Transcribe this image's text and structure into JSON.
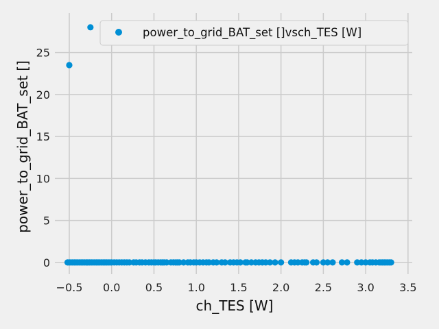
{
  "chart_data": {
    "type": "scatter",
    "title": "",
    "xlabel": "ch_TES [W]",
    "ylabel": "power_to_grid_BAT_set []",
    "xlim": [
      -0.67,
      3.55
    ],
    "ylim": [
      -1.4,
      29.7
    ],
    "xticks": [
      -0.5,
      0.0,
      0.5,
      1.0,
      1.5,
      2.0,
      2.5,
      3.0,
      3.5
    ],
    "xtick_labels": [
      "−0.5",
      "0.0",
      "0.5",
      "1.0",
      "1.5",
      "2.0",
      "2.5",
      "3.0",
      "3.5"
    ],
    "yticks": [
      0,
      5,
      10,
      15,
      20,
      25
    ],
    "ytick_labels": [
      "0",
      "5",
      "10",
      "15",
      "20",
      "25"
    ],
    "grid": true,
    "legend_position": "top-right",
    "series": [
      {
        "name": "power_to_grid_BAT_set []vsch_TES [W]",
        "color": "#008fd5",
        "points": [
          [
            -0.25,
            28.0
          ],
          [
            -0.5,
            23.5
          ],
          [
            -0.52,
            0
          ],
          [
            -0.5,
            0
          ],
          [
            -0.48,
            0
          ],
          [
            -0.46,
            0
          ],
          [
            -0.44,
            0
          ],
          [
            -0.42,
            0
          ],
          [
            -0.4,
            0
          ],
          [
            -0.38,
            0
          ],
          [
            -0.36,
            0
          ],
          [
            -0.34,
            0
          ],
          [
            -0.32,
            0
          ],
          [
            -0.3,
            0
          ],
          [
            -0.28,
            0
          ],
          [
            -0.26,
            0
          ],
          [
            -0.24,
            0
          ],
          [
            -0.22,
            0
          ],
          [
            -0.2,
            0
          ],
          [
            -0.18,
            0
          ],
          [
            -0.16,
            0
          ],
          [
            -0.14,
            0
          ],
          [
            -0.12,
            0
          ],
          [
            -0.1,
            0
          ],
          [
            -0.08,
            0
          ],
          [
            -0.06,
            0
          ],
          [
            -0.04,
            0
          ],
          [
            -0.02,
            0
          ],
          [
            0.0,
            0
          ],
          [
            0.03,
            0
          ],
          [
            0.06,
            0
          ],
          [
            0.09,
            0
          ],
          [
            0.12,
            0
          ],
          [
            0.15,
            0
          ],
          [
            0.18,
            0
          ],
          [
            0.21,
            0
          ],
          [
            0.26,
            0
          ],
          [
            0.29,
            0
          ],
          [
            0.33,
            0
          ],
          [
            0.36,
            0
          ],
          [
            0.4,
            0
          ],
          [
            0.44,
            0
          ],
          [
            0.47,
            0
          ],
          [
            0.5,
            0
          ],
          [
            0.52,
            0
          ],
          [
            0.55,
            0
          ],
          [
            0.58,
            0
          ],
          [
            0.6,
            0
          ],
          [
            0.62,
            0
          ],
          [
            0.65,
            0
          ],
          [
            0.7,
            0
          ],
          [
            0.73,
            0
          ],
          [
            0.76,
            0
          ],
          [
            0.78,
            0
          ],
          [
            0.8,
            0
          ],
          [
            0.85,
            0
          ],
          [
            0.9,
            0
          ],
          [
            0.93,
            0
          ],
          [
            0.97,
            0
          ],
          [
            1.0,
            0
          ],
          [
            1.04,
            0
          ],
          [
            1.08,
            0
          ],
          [
            1.12,
            0
          ],
          [
            1.15,
            0
          ],
          [
            1.2,
            0
          ],
          [
            1.24,
            0
          ],
          [
            1.3,
            0
          ],
          [
            1.34,
            0
          ],
          [
            1.4,
            0
          ],
          [
            1.44,
            0
          ],
          [
            1.48,
            0
          ],
          [
            1.52,
            0
          ],
          [
            1.58,
            0
          ],
          [
            1.6,
            0
          ],
          [
            1.65,
            0
          ],
          [
            1.7,
            0
          ],
          [
            1.74,
            0
          ],
          [
            1.78,
            0
          ],
          [
            1.82,
            0
          ],
          [
            1.87,
            0
          ],
          [
            1.93,
            0
          ],
          [
            2.0,
            0
          ],
          [
            2.12,
            0
          ],
          [
            2.16,
            0
          ],
          [
            2.2,
            0
          ],
          [
            2.25,
            0
          ],
          [
            2.28,
            0
          ],
          [
            2.3,
            0
          ],
          [
            2.38,
            0
          ],
          [
            2.42,
            0
          ],
          [
            2.5,
            0
          ],
          [
            2.55,
            0
          ],
          [
            2.61,
            0
          ],
          [
            2.72,
            0
          ],
          [
            2.78,
            0
          ],
          [
            2.9,
            0
          ],
          [
            2.95,
            0
          ],
          [
            3.0,
            0
          ],
          [
            3.05,
            0
          ],
          [
            3.08,
            0
          ],
          [
            3.12,
            0
          ],
          [
            3.16,
            0
          ],
          [
            3.18,
            0
          ],
          [
            3.2,
            0
          ],
          [
            3.22,
            0
          ],
          [
            3.24,
            0
          ],
          [
            3.26,
            0
          ],
          [
            3.28,
            0
          ],
          [
            3.3,
            0
          ]
        ]
      }
    ]
  }
}
